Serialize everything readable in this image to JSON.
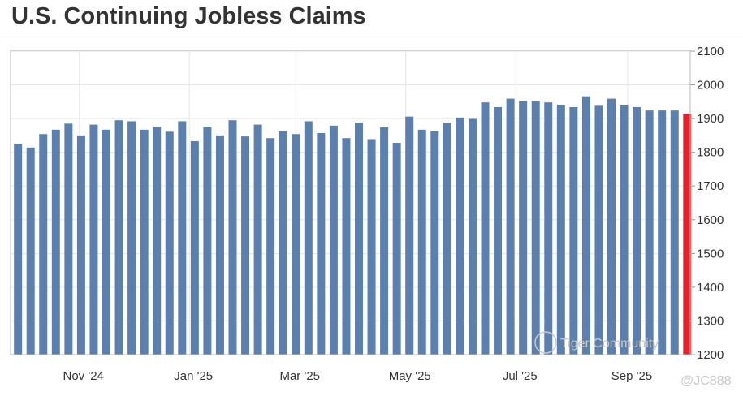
{
  "title": "U.S. Continuing Jobless Claims",
  "watermark": {
    "text1": "Tiger Community",
    "text2": "@JC888"
  },
  "colors": {
    "bar": "#5b80ad",
    "latest_bar": "#e8202a",
    "grid": "#e6e6e6"
  },
  "chart_data": {
    "type": "bar",
    "title": "U.S. Continuing Jobless Claims",
    "xlabel": "",
    "ylabel": "",
    "ylim": [
      1200,
      2100
    ],
    "y_ticks": [
      1200,
      1300,
      1400,
      1500,
      1600,
      1700,
      1800,
      1900,
      2000,
      2100
    ],
    "y_axis_side": "right",
    "grid": true,
    "x_ticks": [
      {
        "date": "2024-11-01",
        "label": "Nov '24"
      },
      {
        "date": "2025-01-01",
        "label": "Jan '25"
      },
      {
        "date": "2025-03-01",
        "label": "Mar '25"
      },
      {
        "date": "2025-05-01",
        "label": "May '25"
      },
      {
        "date": "2025-07-01",
        "label": "Jul '25"
      },
      {
        "date": "2025-09-01",
        "label": "Sep '25"
      }
    ],
    "x_start": "2024-09-28",
    "x_step_days": 7,
    "values": [
      1825,
      1814,
      1854,
      1867,
      1885,
      1850,
      1882,
      1867,
      1895,
      1892,
      1867,
      1875,
      1861,
      1892,
      1833,
      1875,
      1850,
      1895,
      1847,
      1882,
      1842,
      1864,
      1854,
      1892,
      1857,
      1879,
      1842,
      1888,
      1839,
      1874,
      1828,
      1906,
      1867,
      1863,
      1888,
      1903,
      1899,
      1948,
      1934,
      1959,
      1952,
      1952,
      1948,
      1941,
      1934,
      1966,
      1938,
      1959,
      1941,
      1934,
      1924,
      1924,
      1924,
      1914
    ],
    "highlight": "latest value in red"
  }
}
